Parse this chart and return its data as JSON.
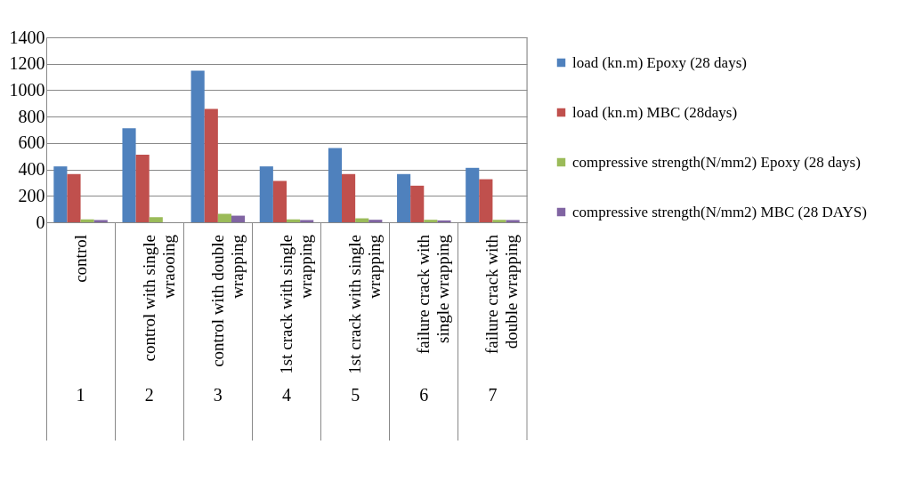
{
  "chart_data": {
    "type": "bar",
    "categories": [
      "control",
      "control with single\nwraooing",
      "control with double\nwrapping",
      "1st crack with single\nwrapping",
      "1st crack with single\nwrapping",
      "failure crack with\nsingle wrapping",
      "failure crack with\ndouble wrapping"
    ],
    "annotations": [
      "1",
      "2",
      "3",
      "4",
      "5",
      "6",
      "7"
    ],
    "series": [
      {
        "name": "load (kn.m) Epoxy (28 days)",
        "color": "#4f81bd",
        "values": [
          423,
          711,
          1148,
          423,
          562,
          365,
          412
        ]
      },
      {
        "name": "load (kn.m) MBC (28days)",
        "color": "#c0504d",
        "values": [
          365,
          512,
          858,
          313,
          365,
          277,
          326
        ]
      },
      {
        "name": "compressive strength(N/mm2) Epoxy (28 days)",
        "color": "#9bbb59",
        "values": [
          22,
          39,
          64,
          22,
          30,
          19,
          19
        ]
      },
      {
        "name": "compressive strength(N/mm2) MBC (28 DAYS)",
        "color": "#8064a2",
        "values": [
          17,
          null,
          50,
          17,
          19,
          14,
          17
        ]
      }
    ],
    "ylim": [
      0,
      1400
    ],
    "yticks": [
      0,
      200,
      400,
      600,
      800,
      1000,
      1200,
      1400
    ],
    "grid": "y",
    "legend": "right"
  }
}
